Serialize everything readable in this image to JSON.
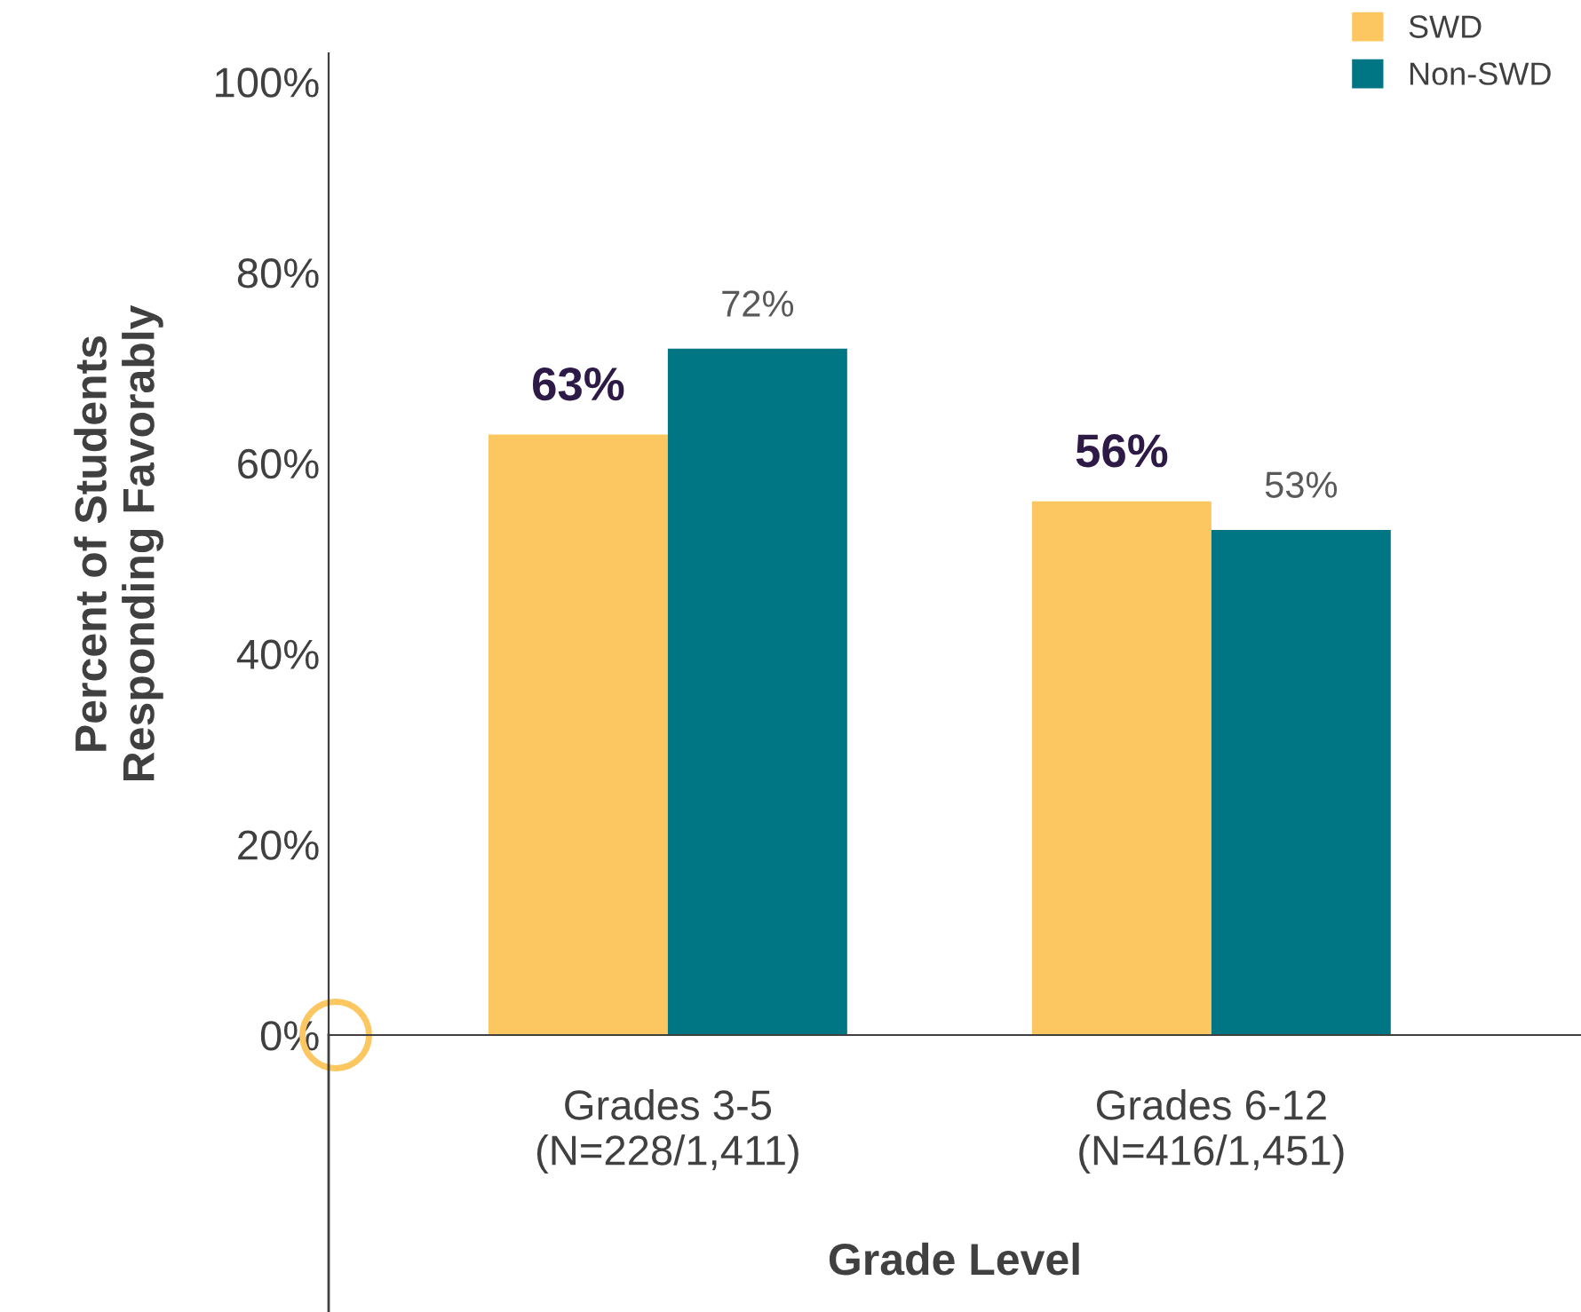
{
  "chart_data": {
    "type": "bar",
    "xlabel": "Grade Level",
    "ylabel": "Percent of Students\nResponding Favorably",
    "categories": [
      "Grades 3-5\n(N=228/1,411)",
      "Grades 6-12\n(N=416/1,451)"
    ],
    "series": [
      {
        "name": "SWD",
        "color": "#fcc761",
        "values": [
          63,
          56
        ],
        "value_labels": [
          "63%",
          "56%"
        ]
      },
      {
        "name": "Non-SWD",
        "color": "#007584",
        "values": [
          72,
          53
        ],
        "value_labels": [
          "72%",
          "53%"
        ]
      }
    ],
    "ylim": [
      0,
      103
    ],
    "yticks": [
      {
        "value": 0,
        "label": "0%"
      },
      {
        "value": 20,
        "label": "20%"
      },
      {
        "value": 40,
        "label": "40%"
      },
      {
        "value": 60,
        "label": "60%"
      },
      {
        "value": 80,
        "label": "80%"
      },
      {
        "value": 100,
        "label": "100%"
      }
    ],
    "grid": false,
    "legend": "top right"
  }
}
